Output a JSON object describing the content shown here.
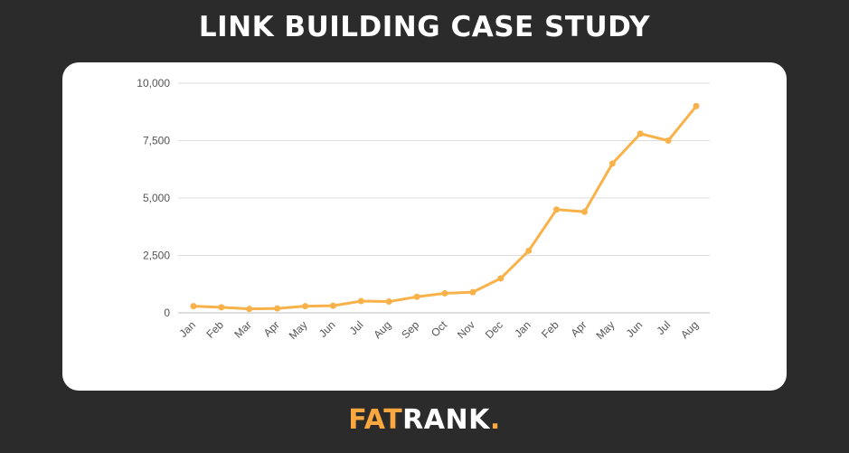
{
  "header": {
    "title": "LINK BUILDING CASE STUDY"
  },
  "brand": {
    "part1": "FAT",
    "part2": "RANK",
    "part3": "."
  },
  "colors": {
    "background": "#2b2b2b",
    "card": "#ffffff",
    "line": "#f9b24a",
    "brand_accent": "#f9a73e"
  },
  "chart_data": {
    "type": "line",
    "title": "",
    "xlabel": "",
    "ylabel": "",
    "categories": [
      "Jan",
      "Feb",
      "Mar",
      "Apr",
      "May",
      "Jun",
      "Jul",
      "Aug",
      "Sep",
      "Oct",
      "Nov",
      "Dec",
      "Jan",
      "Feb",
      "Apr",
      "May",
      "Jun",
      "Jul",
      "Aug"
    ],
    "series": [
      {
        "values": [
          290,
          240,
          170,
          190,
          290,
          310,
          510,
          490,
          700,
          850,
          900,
          1500,
          2700,
          4500,
          4400,
          6500,
          7800,
          7500,
          9000
        ]
      }
    ],
    "ylim": [
      0,
      10000
    ],
    "yticks": [
      0,
      2500,
      5000,
      7500,
      10000
    ],
    "ytick_labels": [
      "0",
      "2,500",
      "5,000",
      "7,500",
      "10,000"
    ],
    "grid": true,
    "legend": "none"
  }
}
